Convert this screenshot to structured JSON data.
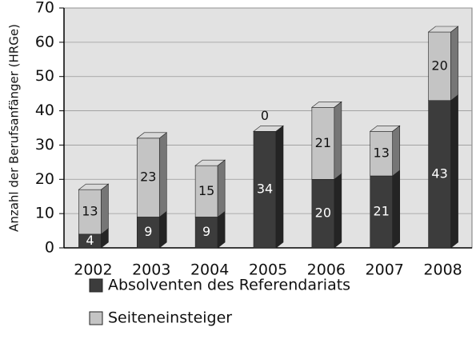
{
  "chart_data": {
    "type": "bar",
    "stacked": true,
    "y_label": "Anzahl der Berufsanfänger (HRGe)",
    "categories": [
      "2002",
      "2003",
      "2004",
      "2005",
      "2006",
      "2007",
      "2008"
    ],
    "series": [
      {
        "name": "Absolventen des Referendariats",
        "color": "#3c3c3c",
        "values": [
          4,
          9,
          9,
          34,
          20,
          21,
          43
        ]
      },
      {
        "name": "Seiteneinsteiger",
        "color": "#c4c4c4",
        "values": [
          13,
          23,
          15,
          0,
          21,
          13,
          20
        ]
      }
    ],
    "ylim": [
      0,
      70
    ],
    "yticks": [
      0,
      10,
      20,
      30,
      40,
      50,
      60,
      70
    ],
    "grid": true
  }
}
